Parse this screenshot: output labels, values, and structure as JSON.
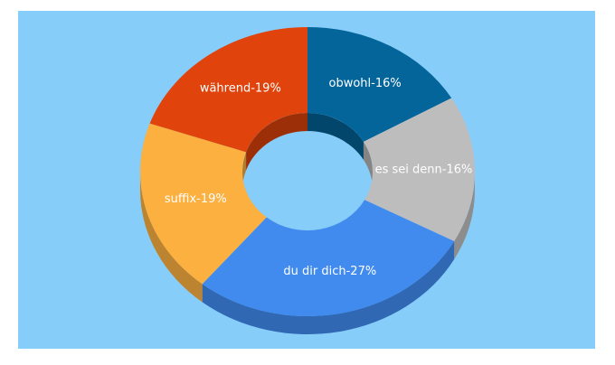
{
  "chart_data": {
    "type": "donut3d",
    "values": [
      16,
      16,
      27,
      19,
      19
    ],
    "value_labels": [
      "obwohl-16%",
      "es sei denn-16%",
      "du dir dich-27%",
      "suffix-19%",
      "während-19%"
    ],
    "colors": [
      "#03659a",
      "#bdbdbd",
      "#418bef",
      "#fbb040",
      "#e0440c"
    ]
  }
}
